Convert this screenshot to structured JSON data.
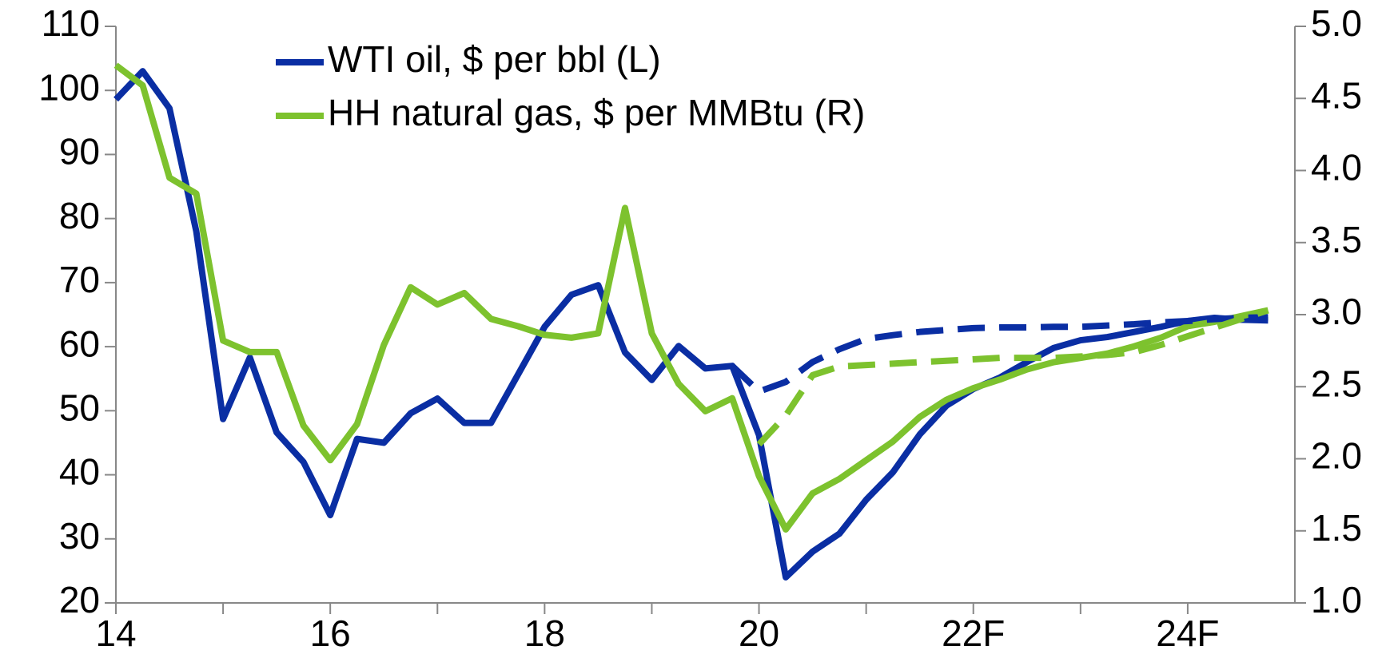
{
  "chart_data": {
    "type": "line",
    "x": [
      14,
      14.25,
      14.5,
      14.75,
      15,
      15.25,
      15.5,
      15.75,
      16,
      16.25,
      16.5,
      16.75,
      17,
      17.25,
      17.5,
      17.75,
      18,
      18.25,
      18.5,
      18.75,
      19,
      19.25,
      19.5,
      19.75,
      20,
      20.25,
      20.5,
      20.75,
      21,
      21.25,
      21.5,
      21.75,
      22,
      22.25,
      22.5,
      22.75,
      23,
      23.25,
      23.5,
      23.75,
      24,
      24.25,
      24.5,
      24.75
    ],
    "series": [
      {
        "name": "WTI oil, $ per bbl (L)",
        "color": "#0a2ea3",
        "line_style": "solid",
        "values": [
          98.6,
          103,
          97.2,
          78,
          48.7,
          58.3,
          46.6,
          42,
          33.7,
          45.6,
          45,
          49.6,
          51.9,
          48.1,
          48.1,
          55.6,
          63.1,
          68.1,
          69.6,
          59.1,
          54.8,
          60.1,
          56.6,
          57,
          46.2,
          24,
          28,
          30.8,
          36.1,
          40.4,
          46.3,
          50.8,
          53.4,
          55.2,
          57.6,
          59.8,
          61,
          61.5,
          62.3,
          63.1,
          64,
          64.5,
          64.2,
          64.1
        ]
      },
      {
        "name": "HH natural gas, $ per MMBtu (R)",
        "color": "#7dc22e",
        "line_style": "solid",
        "axis": "y2",
        "values": [
          4.73,
          4.59,
          3.95,
          3.84,
          2.82,
          2.74,
          2.74,
          2.23,
          1.99,
          2.24,
          2.79,
          3.19,
          3.07,
          3.15,
          2.97,
          2.92,
          2.86,
          2.84,
          2.87,
          3.74,
          2.87,
          2.52,
          2.33,
          2.42,
          1.88,
          1.51,
          1.76,
          1.86,
          1.99,
          2.12,
          2.29,
          2.41,
          2.49,
          2.55,
          2.62,
          2.67,
          2.7,
          2.73,
          2.78,
          2.84,
          2.92,
          2.95,
          2.99,
          3.03
        ]
      },
      {
        "color": "#0a2ea3",
        "line_style": "dashed",
        "values": [
          null,
          null,
          null,
          null,
          null,
          null,
          null,
          null,
          null,
          null,
          null,
          null,
          null,
          null,
          null,
          null,
          null,
          null,
          null,
          null,
          null,
          null,
          null,
          57,
          53,
          54.5,
          57.6,
          59.6,
          61.2,
          61.8,
          62.3,
          62.6,
          62.9,
          63,
          63,
          63.1,
          63.1,
          63.3,
          63.5,
          63.8,
          64,
          64.3,
          64.5,
          64.6
        ]
      },
      {
        "color": "#7dc22e",
        "line_style": "dashed",
        "axis": "y2",
        "values": [
          null,
          null,
          null,
          null,
          null,
          null,
          null,
          null,
          null,
          null,
          null,
          null,
          null,
          null,
          null,
          null,
          null,
          null,
          null,
          null,
          null,
          null,
          null,
          null,
          2.1,
          2.3,
          2.58,
          2.64,
          2.65,
          2.66,
          2.67,
          2.68,
          2.69,
          2.7,
          2.7,
          2.7,
          2.71,
          2.72,
          2.74,
          2.79,
          2.85,
          2.91,
          2.97,
          3.03
        ]
      }
    ],
    "xlim": [
      14,
      25
    ],
    "xticks": [
      14,
      16,
      18,
      20,
      {
        "value": 22,
        "label": "22F"
      },
      {
        "value": 24,
        "label": "24F"
      }
    ],
    "ylim": [
      20,
      110
    ],
    "yticks": [
      20,
      30,
      40,
      50,
      60,
      70,
      80,
      90,
      100,
      110
    ],
    "y2lim": [
      1,
      5
    ],
    "y2ticks": [
      {
        "value": 1,
        "label": "1.0"
      },
      1.5,
      {
        "value": 2,
        "label": "2.0"
      },
      2.5,
      {
        "value": 3,
        "label": "3.0"
      },
      3.5,
      {
        "value": 4,
        "label": "4.0"
      },
      4.5,
      {
        "value": 5,
        "label": "5.0"
      }
    ],
    "legend": "top-left",
    "grid": false
  }
}
